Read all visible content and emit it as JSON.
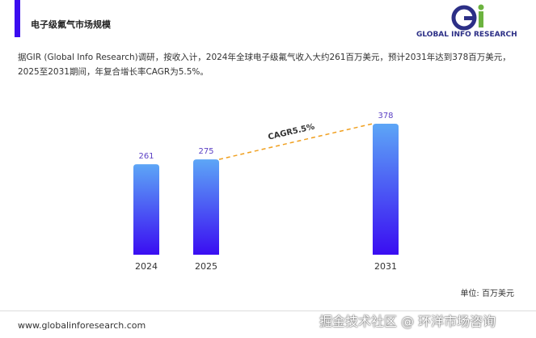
{
  "header": {
    "title": "电子级氟气市场规模",
    "logo": "GLOBAL INFO RESEARCH"
  },
  "description": "据GIR (Global Info Research)调研，按收入计，2024年全球电子级氟气收入大约261百万美元，预计2031年达到378百万美元，2025至2031期间，年复合增长率CAGR为5.5%。",
  "chart_data": {
    "type": "bar",
    "categories": [
      "2024",
      "2025",
      "2031"
    ],
    "values": [
      261,
      275,
      378
    ],
    "color": "#3a0df2",
    "annotation": "CAGR5.5%",
    "unit": "单位: 百万美元"
  },
  "footer": {
    "url": "www.globalinforesearch.com",
    "watermark": "掘金技术社区 @ 环洋市场咨询"
  }
}
